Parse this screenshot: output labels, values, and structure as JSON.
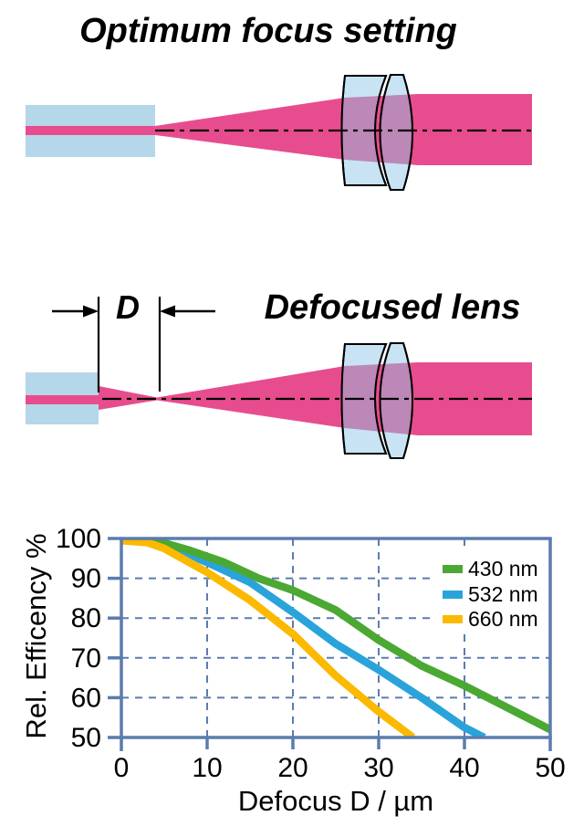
{
  "diagrams": {
    "optimum": {
      "title": "Optimum focus setting"
    },
    "defocused": {
      "title": "Defocused lens",
      "dimension_label": "D"
    }
  },
  "colors": {
    "beam_pink": "#E74D8E",
    "fiber_blue": "#B4D7E9",
    "lens_blue": "#C8E4F4",
    "beam_lens_overlap": "#BB88B7",
    "chart_frame": "#5B7CAE",
    "outline_black": "#000000"
  },
  "chart_data": {
    "type": "line",
    "title": "",
    "xlabel": "Defocus D / µm",
    "ylabel": "Rel. Efficency %",
    "xlim": [
      0,
      50
    ],
    "ylim": [
      50,
      100
    ],
    "xticks": [
      0,
      10,
      20,
      30,
      40,
      50
    ],
    "yticks": [
      100,
      90,
      80,
      70,
      60,
      50
    ],
    "grid": "dashed",
    "legend_position": "top-right-inside",
    "series": [
      {
        "label": "532 nm",
        "color": "#2AA3DB",
        "points": [
          [
            0,
            100
          ],
          [
            3,
            99.5
          ],
          [
            5,
            98.5
          ],
          [
            10,
            94
          ],
          [
            15,
            89
          ],
          [
            20,
            81.5
          ],
          [
            25,
            73.5
          ],
          [
            30,
            67
          ],
          [
            35,
            60
          ],
          [
            40,
            52.5
          ],
          [
            42.3,
            50
          ]
        ]
      },
      {
        "label": "430 nm",
        "color": "#4BA832",
        "points": [
          [
            0,
            100
          ],
          [
            4,
            99.5
          ],
          [
            8,
            97
          ],
          [
            12,
            94
          ],
          [
            16,
            90
          ],
          [
            20,
            87
          ],
          [
            25,
            82
          ],
          [
            30,
            74.5
          ],
          [
            35,
            68
          ],
          [
            40,
            63
          ],
          [
            45,
            57.5
          ],
          [
            50,
            52
          ]
        ]
      },
      {
        "label": "660 nm",
        "color": "#FBB900",
        "points": [
          [
            0,
            99.5
          ],
          [
            3,
            99
          ],
          [
            5,
            97.5
          ],
          [
            10,
            91.5
          ],
          [
            15,
            84.5
          ],
          [
            20,
            76
          ],
          [
            25,
            65.5
          ],
          [
            30,
            56.5
          ],
          [
            34,
            50
          ]
        ]
      }
    ],
    "legend_order": [
      "430 nm",
      "532 nm",
      "660 nm"
    ]
  }
}
